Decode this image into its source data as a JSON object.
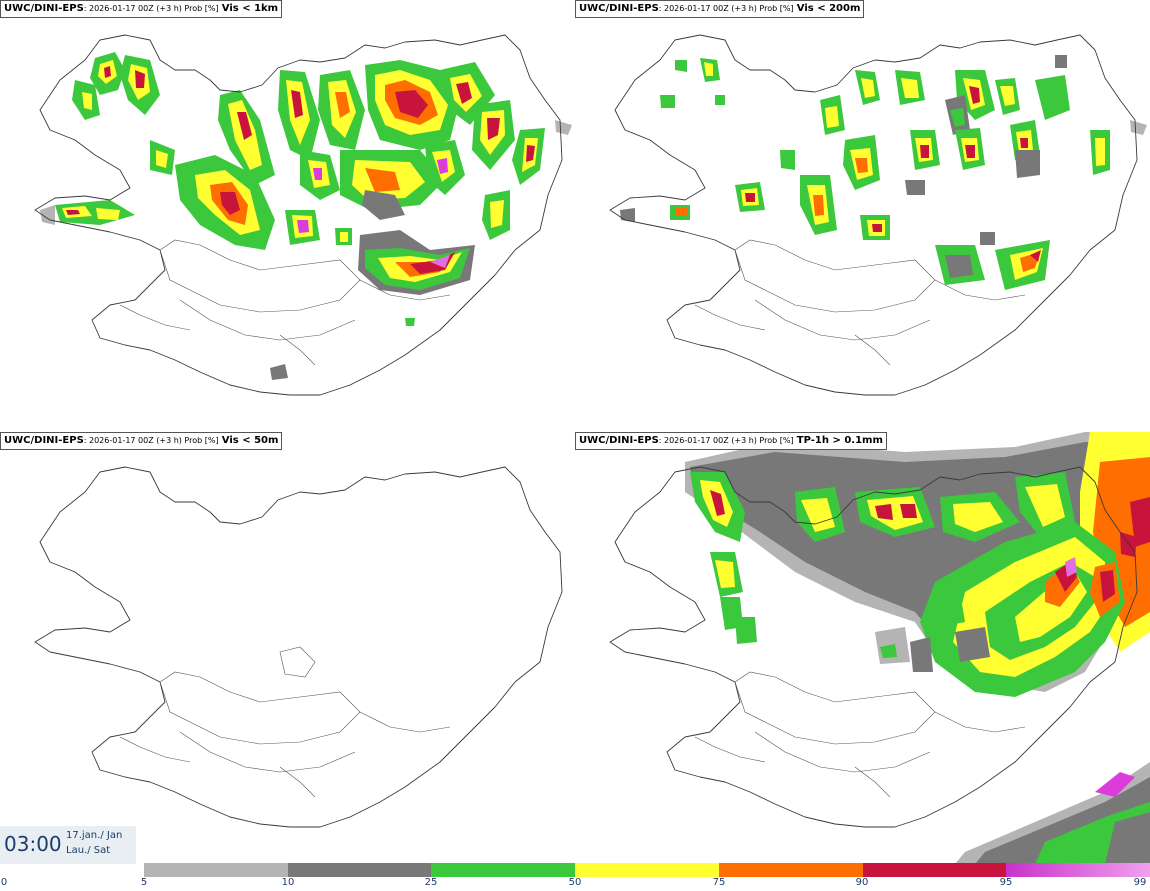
{
  "panels": [
    {
      "model": "UWC/DINI-EPS",
      "meta": ": 2026-01-17 00Z (+3 h) Prob [%]",
      "variable": "Vis < 1km"
    },
    {
      "model": "UWC/DINI-EPS",
      "meta": ": 2026-01-17 00Z (+3 h) Prob [%]",
      "variable": "Vis < 200m"
    },
    {
      "model": "UWC/DINI-EPS",
      "meta": ": 2026-01-17 00Z (+3 h) Prob [%]",
      "variable": "Vis < 50m"
    },
    {
      "model": "UWC/DINI-EPS",
      "meta": ": 2026-01-17 00Z (+3 h) Prob [%]",
      "variable": "TP-1h > 0.1mm"
    }
  ],
  "time": {
    "valid": "03:00",
    "date_line1": "17.jan./ Jan",
    "date_line2": "Lau./ Sat"
  },
  "colorbar": {
    "ticks": [
      "0",
      "5",
      "10",
      "25",
      "50",
      "75",
      "90",
      "95",
      "99"
    ],
    "colors": [
      "#ffffff",
      "#b4b4b4",
      "#787878",
      "#3cc83c",
      "#ffff32",
      "#ff6e00",
      "#c8143c",
      "#dc3cdc"
    ]
  },
  "map_colors": {
    "p5_10": "#b4b4b4",
    "p10_25": "#787878",
    "p25_50": "#3cc83c",
    "p50_75": "#ffff32",
    "p75_90": "#ff6e00",
    "p90_95": "#c8143c",
    "p95_99": "#e070e0"
  }
}
